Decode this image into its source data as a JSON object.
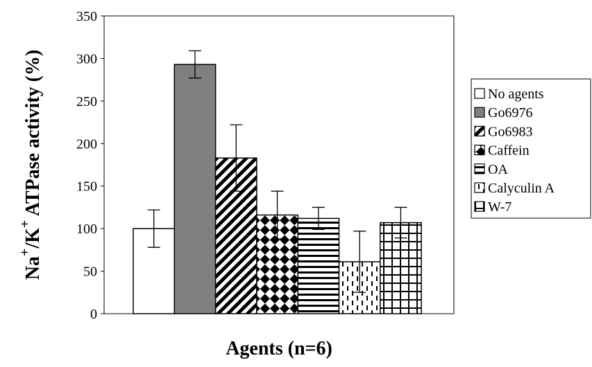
{
  "chart_data": {
    "type": "bar",
    "xlabel": "Agents (n=6)",
    "ylabel_parts": {
      "na": "Na",
      "plus1": "+",
      "slash_k": "/K",
      "plus2": "+",
      "rest": " ATPase activity (%)"
    },
    "ylim": [
      0,
      350
    ],
    "yticks": [
      "0",
      "50",
      "100",
      "150",
      "200",
      "250",
      "300",
      "350"
    ],
    "grid": false,
    "legend_position": "right",
    "series": [
      {
        "name": "No agents",
        "value": 100,
        "error": 22,
        "pattern": "none",
        "fill": "#ffffff"
      },
      {
        "name": "Go6976",
        "value": 293,
        "error": 16,
        "pattern": "solid",
        "fill": "#808080"
      },
      {
        "name": "Go6983",
        "value": 183,
        "error": 39,
        "pattern": "diagonal",
        "fill": "#ffffff"
      },
      {
        "name": "Caffein",
        "value": 116,
        "error": 28,
        "pattern": "checker",
        "fill": "#ffffff"
      },
      {
        "name": "OA",
        "value": 112,
        "error": 13,
        "pattern": "horizontal",
        "fill": "#ffffff"
      },
      {
        "name": "Calyculin A",
        "value": 61,
        "error": 36,
        "pattern": "dashed-vertical",
        "fill": "#ffffff"
      },
      {
        "name": "W-7",
        "value": 107,
        "error": 18,
        "pattern": "grid",
        "fill": "#ffffff"
      }
    ]
  }
}
